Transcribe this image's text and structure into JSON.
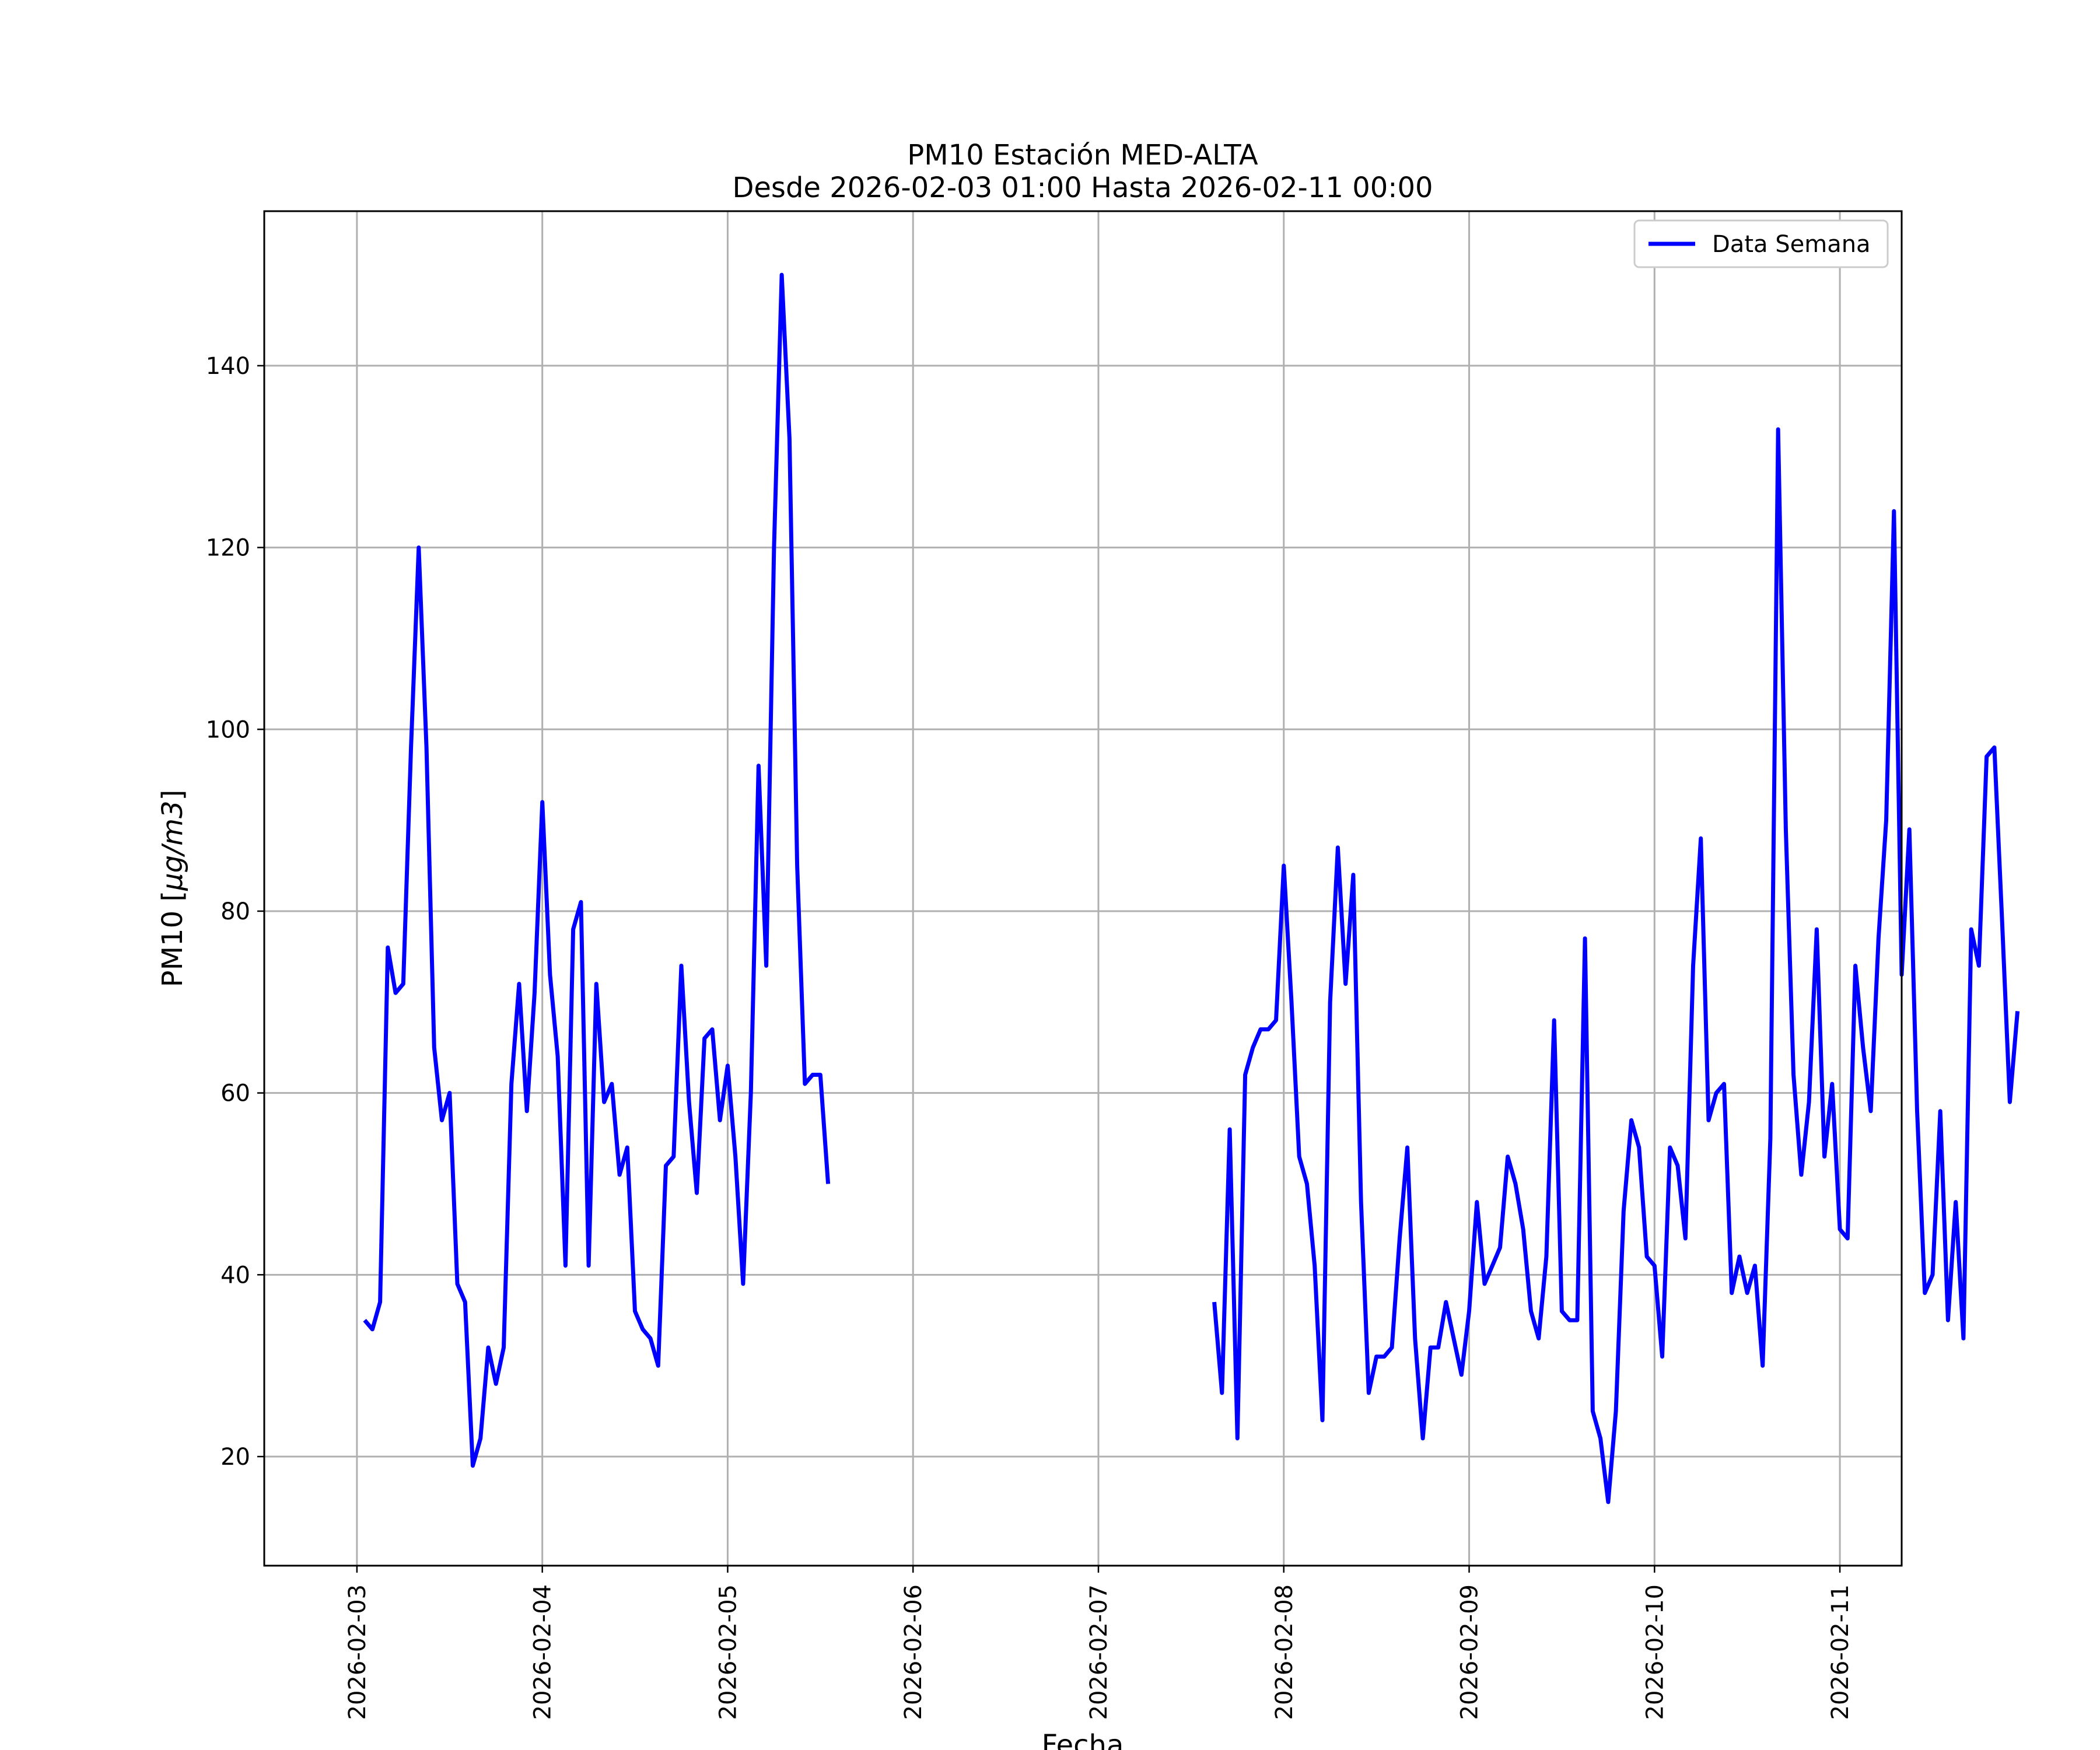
{
  "chart_data": {
    "type": "line",
    "title": "PM10 Estación MED-ALTA",
    "subtitle": "Desde 2026-02-03 01:00 Hasta 2026-02-11 00:00",
    "xlabel": "Fecha",
    "ylabel_prefix": "PM10 [",
    "ylabel_unit": "µg/m3",
    "ylabel_suffix": "]",
    "xlim": [
      "2026-02-02 12:00",
      "2026-02-11 08:00"
    ],
    "ylim": [
      8,
      157
    ],
    "x_ticks": [
      "2026-02-03",
      "2026-02-04",
      "2026-02-05",
      "2026-02-06",
      "2026-02-07",
      "2026-02-08",
      "2026-02-09",
      "2026-02-10",
      "2026-02-11"
    ],
    "y_ticks": [
      20,
      40,
      60,
      80,
      100,
      120,
      140
    ],
    "grid": true,
    "legend_position": "top-right",
    "series": [
      {
        "name": "Data Semana",
        "color": "#0000ff",
        "x_start": "2026-02-03 01:00",
        "step": "1 hour",
        "values": [
          35,
          34,
          37,
          76,
          71,
          72,
          98,
          120,
          98,
          65,
          57,
          60,
          39,
          37,
          19,
          22,
          32,
          28,
          32,
          61,
          72,
          58,
          71,
          92,
          73,
          64,
          41,
          78,
          81,
          41,
          72,
          59,
          61,
          51,
          54,
          36,
          34,
          33,
          30,
          52,
          53,
          74,
          59,
          49,
          66,
          67,
          57,
          63,
          53,
          39,
          60,
          96,
          74,
          120,
          150,
          132,
          85,
          61,
          62,
          62,
          50,
          null,
          null,
          null,
          null,
          null,
          null,
          null,
          null,
          null,
          null,
          null,
          null,
          null,
          null,
          null,
          null,
          null,
          null,
          null,
          null,
          null,
          null,
          null,
          null,
          null,
          null,
          null,
          null,
          null,
          null,
          null,
          null,
          null,
          null,
          null,
          null,
          null,
          null,
          null,
          null,
          null,
          null,
          null,
          null,
          null,
          null,
          null,
          null,
          null,
          37,
          27,
          56,
          22,
          62,
          65,
          67,
          67,
          68,
          85,
          70,
          53,
          50,
          41,
          24,
          70,
          87,
          72,
          84,
          48,
          27,
          31,
          31,
          32,
          44,
          54,
          33,
          22,
          32,
          32,
          37,
          33,
          29,
          36,
          48,
          39,
          41,
          43,
          53,
          50,
          45,
          36,
          33,
          42,
          68,
          36,
          35,
          35,
          77,
          25,
          22,
          15,
          25,
          47,
          57,
          54,
          42,
          41,
          31,
          54,
          52,
          44,
          74,
          88,
          57,
          60,
          61,
          38,
          42,
          38,
          41,
          30,
          55,
          133,
          89,
          62,
          51,
          59,
          78,
          53,
          61,
          45,
          44,
          74,
          65,
          58,
          77,
          90,
          124,
          73,
          89,
          58,
          38,
          40,
          58,
          35,
          48,
          33,
          78,
          74,
          97,
          98,
          79,
          59,
          69
        ]
      }
    ]
  }
}
